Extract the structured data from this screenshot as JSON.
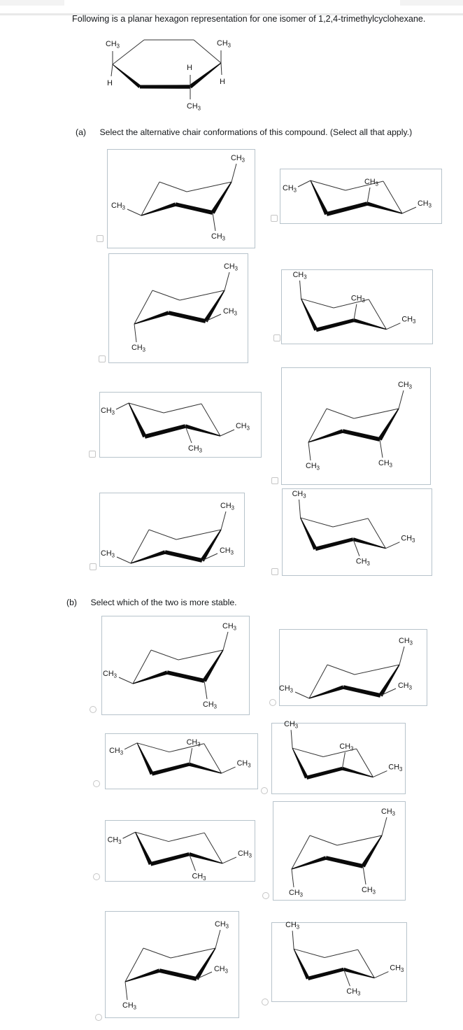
{
  "intro": "Following is a planar hexagon representation for one isomer of 1,2,4-trimethylcyclohexane.",
  "planar_hexagon": {
    "substituent_labels": [
      {
        "position": "top-left",
        "text": "CH3"
      },
      {
        "position": "left",
        "text": "H"
      },
      {
        "position": "top-right",
        "text": "CH3"
      },
      {
        "position": "right",
        "text": "H"
      },
      {
        "position": "middle",
        "text": "H"
      },
      {
        "position": "bottom",
        "text": "CH3"
      }
    ]
  },
  "question_a": {
    "label": "(a)",
    "prompt": "Select the alternative chair conformations of this compound. (Select all that apply.)",
    "control": "checkbox",
    "options": [
      {
        "id": "a1",
        "checked": false,
        "chair": "A",
        "substituents": [
          {
            "position": "ring-left",
            "orientation": "equatorial-left",
            "text": "CH3"
          },
          {
            "position": "ring-top-right",
            "orientation": "axial-up",
            "text": "CH3"
          },
          {
            "position": "ring-front-right",
            "orientation": "axial-down",
            "text": "CH3"
          }
        ]
      },
      {
        "id": "a2",
        "checked": false,
        "chair": "B",
        "substituents": [
          {
            "position": "ring-top-left",
            "orientation": "equatorial-left",
            "text": "CH3"
          },
          {
            "position": "ring-front-middle",
            "orientation": "axial-up",
            "text": "CH3"
          },
          {
            "position": "ring-right",
            "orientation": "equatorial-right",
            "text": "CH3"
          }
        ]
      },
      {
        "id": "a3",
        "checked": false,
        "chair": "A",
        "substituents": [
          {
            "position": "ring-left",
            "orientation": "axial-down",
            "text": "CH3"
          },
          {
            "position": "ring-top-right",
            "orientation": "axial-up",
            "text": "CH3"
          },
          {
            "position": "ring-front-right",
            "orientation": "equatorial-right",
            "text": "CH3"
          }
        ]
      },
      {
        "id": "a4",
        "checked": false,
        "chair": "B",
        "substituents": [
          {
            "position": "ring-top-left",
            "orientation": "axial-up",
            "text": "CH3"
          },
          {
            "position": "ring-front-middle",
            "orientation": "axial-up",
            "text": "CH3"
          },
          {
            "position": "ring-right",
            "orientation": "equatorial-right",
            "text": "CH3"
          }
        ]
      },
      {
        "id": "a5",
        "checked": false,
        "chair": "B",
        "substituents": [
          {
            "position": "ring-top-left",
            "orientation": "equatorial-left",
            "text": "CH3"
          },
          {
            "position": "ring-front-middle",
            "orientation": "axial-down",
            "text": "CH3"
          },
          {
            "position": "ring-right",
            "orientation": "equatorial-right",
            "text": "CH3"
          }
        ]
      },
      {
        "id": "a6",
        "checked": false,
        "chair": "A",
        "substituents": [
          {
            "position": "ring-left",
            "orientation": "axial-down",
            "text": "CH3"
          },
          {
            "position": "ring-top-right",
            "orientation": "axial-up",
            "text": "CH3"
          },
          {
            "position": "ring-front-right",
            "orientation": "axial-down",
            "text": "CH3"
          }
        ]
      },
      {
        "id": "a7",
        "checked": false,
        "chair": "A",
        "substituents": [
          {
            "position": "ring-left",
            "orientation": "equatorial-left",
            "text": "CH3"
          },
          {
            "position": "ring-top-right",
            "orientation": "axial-up",
            "text": "CH3"
          },
          {
            "position": "ring-front-right",
            "orientation": "equatorial-right",
            "text": "CH3"
          }
        ]
      },
      {
        "id": "a8",
        "checked": false,
        "chair": "B",
        "substituents": [
          {
            "position": "ring-top-left",
            "orientation": "axial-up",
            "text": "CH3"
          },
          {
            "position": "ring-front-middle",
            "orientation": "axial-down",
            "text": "CH3"
          },
          {
            "position": "ring-right",
            "orientation": "equatorial-right",
            "text": "CH3"
          }
        ]
      }
    ]
  },
  "question_b": {
    "label": "(b)",
    "prompt": "Select which of the two is more stable.",
    "control": "radio",
    "options": [
      {
        "id": "b1",
        "selected": false,
        "chair": "A",
        "substituents": [
          {
            "position": "ring-left",
            "orientation": "equatorial-left",
            "text": "CH3"
          },
          {
            "position": "ring-top-right",
            "orientation": "axial-up",
            "text": "CH3"
          },
          {
            "position": "ring-front-right",
            "orientation": "axial-down",
            "text": "CH3"
          }
        ]
      },
      {
        "id": "b2",
        "selected": false,
        "chair": "A",
        "substituents": [
          {
            "position": "ring-left",
            "orientation": "equatorial-left",
            "text": "CH3"
          },
          {
            "position": "ring-top-right",
            "orientation": "axial-up",
            "text": "CH3"
          },
          {
            "position": "ring-front-right",
            "orientation": "equatorial-right",
            "text": "CH3"
          }
        ]
      },
      {
        "id": "b3",
        "selected": false,
        "chair": "B",
        "substituents": [
          {
            "position": "ring-top-left",
            "orientation": "equatorial-left",
            "text": "CH3"
          },
          {
            "position": "ring-front-middle",
            "orientation": "axial-up",
            "text": "CH3"
          },
          {
            "position": "ring-right",
            "orientation": "equatorial-right",
            "text": "CH3"
          }
        ]
      },
      {
        "id": "b4",
        "selected": false,
        "chair": "B",
        "substituents": [
          {
            "position": "ring-top-left",
            "orientation": "axial-up",
            "text": "CH3"
          },
          {
            "position": "ring-front-middle",
            "orientation": "axial-up",
            "text": "CH3"
          },
          {
            "position": "ring-right",
            "orientation": "equatorial-right",
            "text": "CH3"
          }
        ]
      },
      {
        "id": "b5",
        "selected": false,
        "chair": "B",
        "substituents": [
          {
            "position": "ring-top-left",
            "orientation": "equatorial-left",
            "text": "CH3"
          },
          {
            "position": "ring-front-middle",
            "orientation": "axial-down",
            "text": "CH3"
          },
          {
            "position": "ring-right",
            "orientation": "equatorial-right",
            "text": "CH3"
          }
        ]
      },
      {
        "id": "b6",
        "selected": false,
        "chair": "A",
        "substituents": [
          {
            "position": "ring-left",
            "orientation": "axial-down",
            "text": "CH3"
          },
          {
            "position": "ring-top-right",
            "orientation": "axial-up",
            "text": "CH3"
          },
          {
            "position": "ring-front-right",
            "orientation": "axial-down",
            "text": "CH3"
          }
        ]
      },
      {
        "id": "b7",
        "selected": false,
        "chair": "A",
        "substituents": [
          {
            "position": "ring-left",
            "orientation": "axial-down",
            "text": "CH3"
          },
          {
            "position": "ring-top-right",
            "orientation": "axial-up",
            "text": "CH3"
          },
          {
            "position": "ring-front-right",
            "orientation": "equatorial-right",
            "text": "CH3"
          }
        ]
      },
      {
        "id": "b8",
        "selected": false,
        "chair": "B",
        "substituents": [
          {
            "position": "ring-top-left",
            "orientation": "axial-up",
            "text": "CH3"
          },
          {
            "position": "ring-front-middle",
            "orientation": "axial-down",
            "text": "CH3"
          },
          {
            "position": "ring-right",
            "orientation": "equatorial-right",
            "text": "CH3"
          }
        ]
      }
    ]
  }
}
